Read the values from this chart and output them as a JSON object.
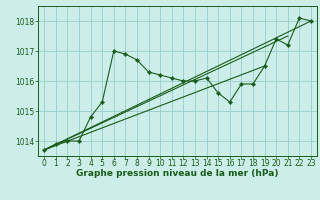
{
  "title": "Graphe pression niveau de la mer (hPa)",
  "bg_color": "#cceee8",
  "grid_color": "#99cccc",
  "line_color": "#1a5c1a",
  "xlim": [
    -0.5,
    23.5
  ],
  "ylim": [
    1013.5,
    1018.5
  ],
  "yticks": [
    1014,
    1015,
    1016,
    1017,
    1018
  ],
  "xticks": [
    0,
    1,
    2,
    3,
    4,
    5,
    6,
    7,
    8,
    9,
    10,
    11,
    12,
    13,
    14,
    15,
    16,
    17,
    18,
    19,
    20,
    21,
    22,
    23
  ],
  "hours": [
    0,
    1,
    2,
    3,
    4,
    5,
    6,
    7,
    8,
    9,
    10,
    11,
    12,
    13,
    14,
    15,
    16,
    17,
    18,
    19,
    20,
    21,
    22,
    23
  ],
  "pressure": [
    1013.7,
    1013.9,
    1014.0,
    1014.0,
    1014.8,
    1015.3,
    1017.0,
    1016.9,
    1016.7,
    1016.3,
    1016.2,
    1016.1,
    1016.0,
    1016.0,
    1016.1,
    1015.6,
    1015.3,
    1015.9,
    1015.9,
    1016.5,
    1017.4,
    1017.2,
    1018.1,
    1018.0
  ],
  "trend1_x": [
    0,
    23
  ],
  "trend1_y": [
    1013.7,
    1018.0
  ],
  "trend2_x": [
    0,
    21
  ],
  "trend2_y": [
    1013.7,
    1017.5
  ],
  "trend3_x": [
    0,
    19
  ],
  "trend3_y": [
    1013.7,
    1016.5
  ],
  "tick_fontsize": 5.5,
  "title_fontsize": 6.5
}
